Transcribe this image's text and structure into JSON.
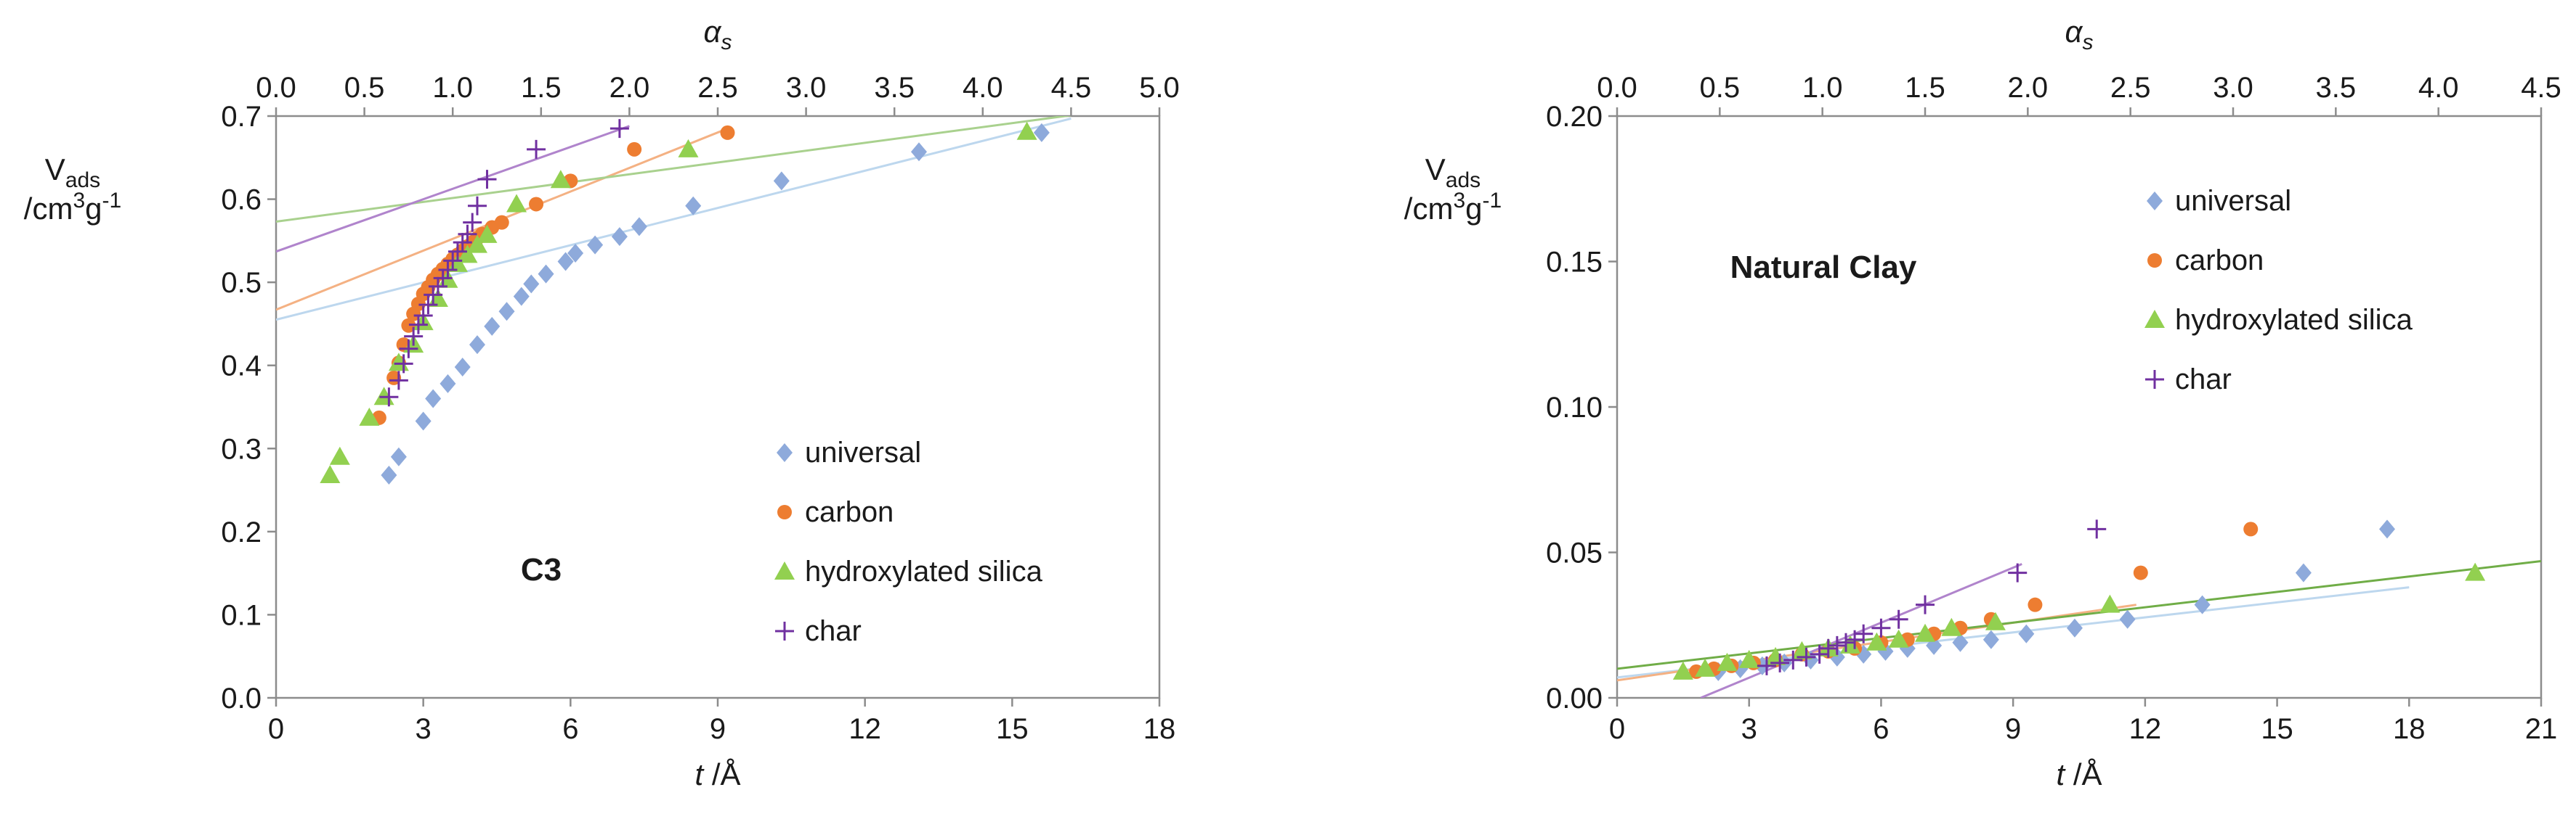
{
  "chart_data": [
    {
      "type": "scatter",
      "label": "C3",
      "xlabel": "t /Å",
      "x_var": "t",
      "x_unit": "/Å",
      "ylabel_line1": "V",
      "ylabel_sub": "ads",
      "ylabel_line2_pre": "/cm",
      "ylabel_sup1": "3",
      "ylabel_line2_mid": "g",
      "ylabel_sup2": "-1",
      "x2label": "α",
      "x2label_sub": "s",
      "xlim": [
        0,
        18
      ],
      "ylim": [
        0,
        0.7
      ],
      "x2lim": [
        0,
        5
      ],
      "xticks": [
        "0",
        "3",
        "6",
        "9",
        "12",
        "15",
        "18"
      ],
      "yticks": [
        "0.0",
        "0.1",
        "0.2",
        "0.3",
        "0.4",
        "0.5",
        "0.6",
        "0.7"
      ],
      "x2ticks": [
        "0.0",
        "0.5",
        "1.0",
        "1.5",
        "2.0",
        "2.5",
        "3.0",
        "3.5",
        "4.0",
        "4.5",
        "5.0"
      ],
      "legend_position": "bottom-right",
      "series": [
        {
          "name": "universal",
          "marker": "diamond",
          "color": "#8eaadb",
          "line_color": "#bdd7ee",
          "x": [
            2.3,
            2.5,
            3.0,
            3.2,
            3.5,
            3.8,
            4.1,
            4.4,
            4.7,
            5.0,
            5.2,
            5.5,
            5.9,
            6.1,
            6.5,
            7.0,
            7.4,
            8.5,
            10.3,
            13.1,
            15.6
          ],
          "y": [
            0.268,
            0.29,
            0.333,
            0.36,
            0.378,
            0.398,
            0.425,
            0.447,
            0.465,
            0.483,
            0.498,
            0.51,
            0.525,
            0.535,
            0.545,
            0.555,
            0.567,
            0.592,
            0.622,
            0.657,
            0.68
          ],
          "fit": {
            "x": [
              0,
              16.2
            ],
            "y": [
              0.455,
              0.697
            ]
          }
        },
        {
          "name": "carbon",
          "marker": "circle",
          "color": "#ed7d31",
          "line_color": "#f4b183",
          "x": [
            2.1,
            2.4,
            2.5,
            2.6,
            2.7,
            2.8,
            2.9,
            3.0,
            3.1,
            3.2,
            3.3,
            3.4,
            3.5,
            3.6,
            3.7,
            3.8,
            3.9,
            4.0,
            4.1,
            4.2,
            4.4,
            4.6,
            5.3,
            6.0,
            7.3,
            9.2
          ],
          "y": [
            0.337,
            0.385,
            0.403,
            0.425,
            0.448,
            0.462,
            0.474,
            0.486,
            0.494,
            0.503,
            0.51,
            0.516,
            0.522,
            0.528,
            0.533,
            0.538,
            0.543,
            0.548,
            0.553,
            0.558,
            0.566,
            0.572,
            0.594,
            0.622,
            0.66,
            0.68
          ],
          "fit": {
            "x": [
              0,
              9.2
            ],
            "y": [
              0.467,
              0.685
            ]
          }
        },
        {
          "name": "hydroxylated silica",
          "marker": "triangle",
          "color": "#92d050",
          "line_color": "#a9d18e",
          "x": [
            1.1,
            1.3,
            1.9,
            2.2,
            2.5,
            2.8,
            3.0,
            3.3,
            3.5,
            3.7,
            3.9,
            4.1,
            4.3,
            4.9,
            5.8,
            8.4,
            15.3
          ],
          "y": [
            0.268,
            0.29,
            0.337,
            0.362,
            0.403,
            0.425,
            0.452,
            0.48,
            0.503,
            0.522,
            0.533,
            0.545,
            0.557,
            0.594,
            0.623,
            0.66,
            0.681
          ],
          "fit": {
            "x": [
              0,
              16.2
            ],
            "y": [
              0.573,
              0.701
            ]
          }
        },
        {
          "name": "char",
          "marker": "plus",
          "color": "#7030a0",
          "line_color": "#b084cc",
          "x": [
            2.3,
            2.5,
            2.6,
            2.7,
            2.8,
            2.9,
            3.0,
            3.1,
            3.2,
            3.3,
            3.4,
            3.5,
            3.6,
            3.7,
            3.8,
            3.9,
            4.0,
            4.1,
            4.3,
            5.3,
            7.0
          ],
          "y": [
            0.362,
            0.382,
            0.402,
            0.42,
            0.435,
            0.449,
            0.46,
            0.473,
            0.485,
            0.495,
            0.505,
            0.515,
            0.526,
            0.537,
            0.548,
            0.558,
            0.572,
            0.592,
            0.624,
            0.66,
            0.685
          ],
          "fit": {
            "x": [
              0,
              7.2
            ],
            "y": [
              0.537,
              0.688
            ]
          }
        }
      ]
    },
    {
      "type": "scatter",
      "label": "Natural Clay",
      "xlabel": "t /Å",
      "x_var": "t",
      "x_unit": "/Å",
      "ylabel_line1": "V",
      "ylabel_sub": "ads",
      "ylabel_line2_pre": "/cm",
      "ylabel_sup1": "3",
      "ylabel_line2_mid": "g",
      "ylabel_sup2": "-1",
      "x2label": "α",
      "x2label_sub": "s",
      "xlim": [
        0,
        21
      ],
      "ylim": [
        0,
        0.2
      ],
      "x2lim": [
        0,
        4.5
      ],
      "xticks": [
        "0",
        "3",
        "6",
        "9",
        "12",
        "15",
        "18",
        "21"
      ],
      "yticks": [
        "0.00",
        "0.05",
        "0.10",
        "0.15",
        "0.20"
      ],
      "x2ticks": [
        "0.0",
        "0.5",
        "1.0",
        "1.5",
        "2.0",
        "2.5",
        "3.0",
        "3.5",
        "4.0",
        "4.5"
      ],
      "legend_position": "top-right",
      "series": [
        {
          "name": "universal",
          "marker": "diamond",
          "color": "#8eaadb",
          "line_color": "#bdd7ee",
          "x": [
            2.3,
            2.8,
            3.3,
            3.8,
            4.4,
            5.0,
            5.6,
            6.1,
            6.6,
            7.2,
            7.8,
            8.5,
            9.3,
            10.4,
            11.6,
            13.3,
            15.6,
            17.5
          ],
          "y": [
            0.009,
            0.01,
            0.011,
            0.012,
            0.013,
            0.014,
            0.015,
            0.016,
            0.017,
            0.018,
            0.019,
            0.02,
            0.022,
            0.024,
            0.027,
            0.032,
            0.043,
            0.058
          ],
          "fit": {
            "x": [
              0,
              18
            ],
            "y": [
              0.007,
              0.038
            ]
          }
        },
        {
          "name": "carbon",
          "marker": "circle",
          "color": "#ed7d31",
          "line_color": "#f4b183",
          "x": [
            1.8,
            2.2,
            2.6,
            3.1,
            3.6,
            4.2,
            4.8,
            5.4,
            6.0,
            6.6,
            7.2,
            7.8,
            8.5,
            9.5,
            11.9,
            14.4
          ],
          "y": [
            0.009,
            0.01,
            0.011,
            0.012,
            0.013,
            0.015,
            0.016,
            0.017,
            0.019,
            0.02,
            0.022,
            0.024,
            0.027,
            0.032,
            0.043,
            0.058
          ],
          "fit": {
            "x": [
              0,
              11.8
            ],
            "y": [
              0.006,
              0.032
            ]
          }
        },
        {
          "name": "hydroxylated silica",
          "marker": "triangle",
          "color": "#92d050",
          "line_color": "#70ad47",
          "x": [
            1.5,
            2.0,
            2.5,
            3.0,
            3.6,
            4.2,
            4.8,
            5.3,
            5.9,
            6.4,
            7.0,
            7.6,
            8.6,
            11.2,
            19.5
          ],
          "y": [
            0.009,
            0.01,
            0.012,
            0.013,
            0.014,
            0.016,
            0.017,
            0.018,
            0.019,
            0.02,
            0.022,
            0.024,
            0.026,
            0.032,
            0.043
          ],
          "fit": {
            "x": [
              0,
              21
            ],
            "y": [
              0.01,
              0.047
            ]
          }
        },
        {
          "name": "char",
          "marker": "plus",
          "color": "#7030a0",
          "line_color": "#b084cc",
          "x": [
            3.4,
            3.7,
            4.0,
            4.3,
            4.6,
            4.8,
            5.0,
            5.2,
            5.4,
            5.6,
            6.0,
            6.4,
            7.0,
            9.1,
            10.9
          ],
          "y": [
            0.011,
            0.012,
            0.013,
            0.014,
            0.015,
            0.017,
            0.018,
            0.019,
            0.02,
            0.022,
            0.024,
            0.027,
            0.032,
            0.043,
            0.058
          ],
          "fit": {
            "x": [
              1.9,
              9.2
            ],
            "y": [
              0.0,
              0.046
            ]
          }
        }
      ]
    }
  ]
}
